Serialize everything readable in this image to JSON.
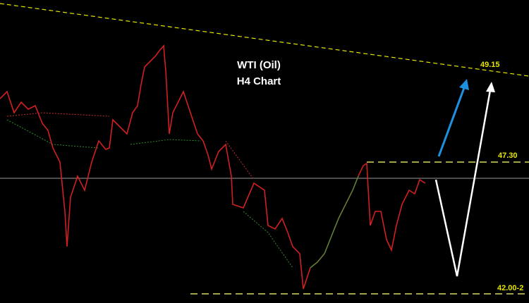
{
  "chart": {
    "title": "WTI (Oil)",
    "subtitle": "H4 Chart",
    "levels": [
      "49.15",
      "47.30",
      "42.00-2"
    ]
  }
}
